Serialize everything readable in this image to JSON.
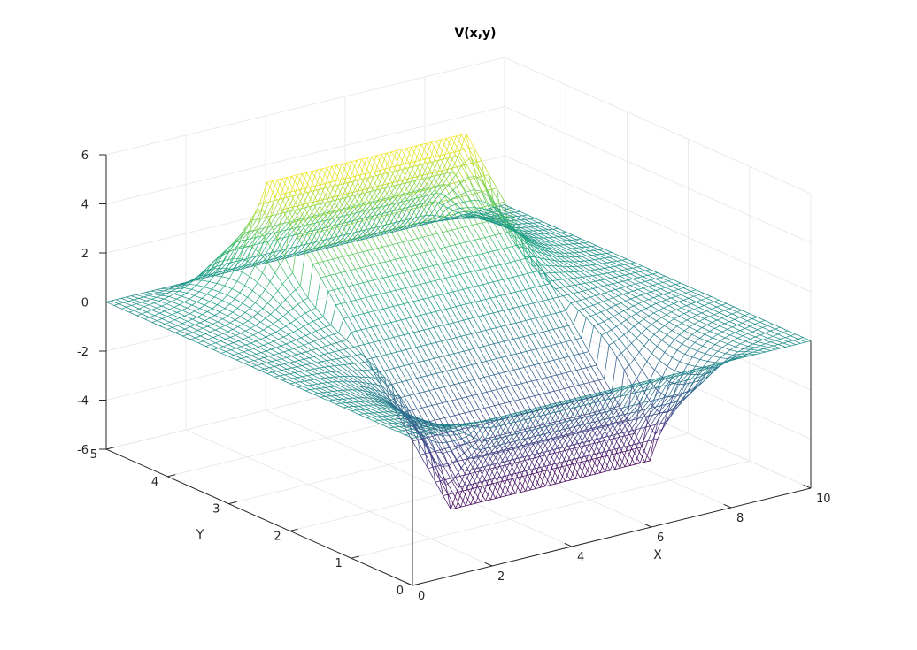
{
  "chart_data": {
    "type": "surface-mesh",
    "title": "V(x,y)",
    "xlabel": "X",
    "ylabel": "Y",
    "zlabel": "",
    "xlim": [
      0,
      10
    ],
    "ylim": [
      0,
      5
    ],
    "zlim": [
      -6,
      6
    ],
    "xticks": [
      "0",
      "2",
      "4",
      "6",
      "8",
      "10"
    ],
    "yticks": [
      "0",
      "1",
      "2",
      "3",
      "4",
      "5"
    ],
    "zticks": [
      "6",
      "4",
      "2",
      "0",
      "-2",
      "-4",
      "-6"
    ],
    "grid": true,
    "colormap": "viridis",
    "mesh": {
      "x_range": [
        0,
        10
      ],
      "y_range": [
        0,
        5
      ],
      "nx": 81,
      "ny": 41
    },
    "features": [
      {
        "name": "positive plate",
        "y": 4,
        "x_range": [
          2.5,
          7.5
        ],
        "z": 5
      },
      {
        "name": "negative plate",
        "y": 1,
        "x_range": [
          2.5,
          7.5
        ],
        "z": -5
      }
    ],
    "boundary_value": 0
  },
  "colors": {
    "viridis": [
      "#440154",
      "#482878",
      "#3e4989",
      "#31688e",
      "#26828e",
      "#1f9e89",
      "#35b779",
      "#6ece58",
      "#b5de2b",
      "#fde725"
    ],
    "grid": "#e6e6e6",
    "axis": "#262626"
  }
}
